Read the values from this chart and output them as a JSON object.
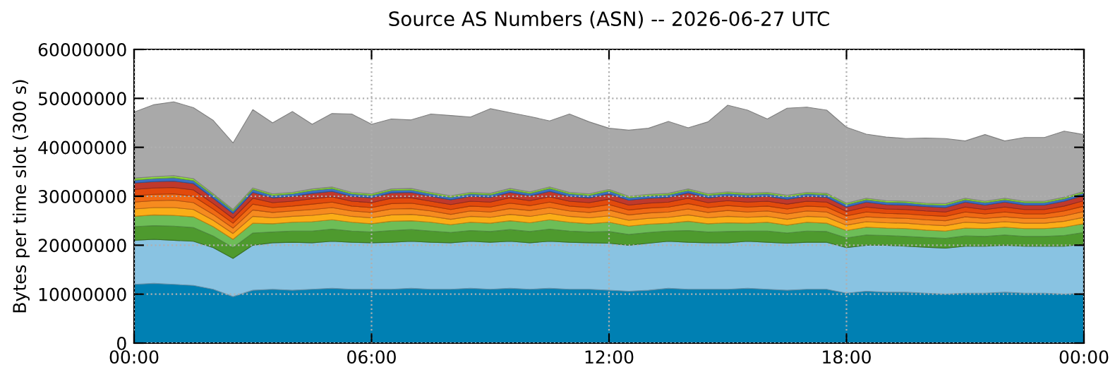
{
  "chart_data": {
    "type": "area",
    "stacked": true,
    "title": "Source AS Numbers (ASN) -- 2026-06-27 UTC",
    "ylabel": "Bytes per time slot (300 s)",
    "x": [
      0,
      0.5,
      1,
      1.5,
      2,
      2.5,
      3,
      3.5,
      4,
      4.5,
      5,
      5.5,
      6,
      6.5,
      7,
      7.5,
      8,
      8.5,
      9,
      9.5,
      10,
      10.5,
      11,
      11.5,
      12,
      12.5,
      13,
      13.5,
      14,
      14.5,
      15,
      15.5,
      16,
      16.5,
      17,
      17.5,
      18,
      18.5,
      19,
      19.5,
      20,
      20.5,
      21,
      21.5,
      22,
      22.5,
      23,
      23.5,
      24
    ],
    "xlim": [
      0,
      24
    ],
    "xticks": [
      {
        "value": 0,
        "label": "00:00"
      },
      {
        "value": 6,
        "label": "06:00"
      },
      {
        "value": 12,
        "label": "12:00"
      },
      {
        "value": 18,
        "label": "18:00"
      },
      {
        "value": 24,
        "label": "00:00"
      }
    ],
    "ylim": [
      0,
      60000000
    ],
    "yticks": [
      0,
      10000000,
      20000000,
      30000000,
      40000000,
      50000000,
      60000000
    ],
    "grid": true,
    "series": [
      {
        "color": "#0080b3",
        "values": [
          12000000,
          12200000,
          12000000,
          11800000,
          11000000,
          9500000,
          10800000,
          11000000,
          10800000,
          11000000,
          11200000,
          11000000,
          11000000,
          11000000,
          11200000,
          11000000,
          11000000,
          11200000,
          11000000,
          11200000,
          11000000,
          11200000,
          11000000,
          11000000,
          10800000,
          10600000,
          10800000,
          11200000,
          11000000,
          11000000,
          11000000,
          11200000,
          11000000,
          10800000,
          11000000,
          11000000,
          10200000,
          10600000,
          10400000,
          10400000,
          10200000,
          10000000,
          10200000,
          10200000,
          10400000,
          10200000,
          10200000,
          10000000,
          10200000
        ]
      },
      {
        "color": "#89c3e2",
        "values": [
          9000000,
          9000000,
          9000000,
          9000000,
          8500000,
          7800000,
          9200000,
          9500000,
          9800000,
          9500000,
          9600000,
          9600000,
          9500000,
          9600000,
          9600000,
          9600000,
          9500000,
          9600000,
          9600000,
          9600000,
          9500000,
          9600000,
          9600000,
          9500000,
          9600000,
          9400000,
          9600000,
          9600000,
          9600000,
          9500000,
          9500000,
          9600000,
          9600000,
          9600000,
          9600000,
          9600000,
          9300000,
          9400000,
          9600000,
          9400000,
          9400000,
          9400000,
          9600000,
          9600000,
          9600000,
          9600000,
          9600000,
          9800000,
          10000000
        ]
      },
      {
        "color": "#4e9a2e",
        "values": [
          2800000,
          2800000,
          2900000,
          2800000,
          2400000,
          2200000,
          2500000,
          2200000,
          2300000,
          2400000,
          2500000,
          2300000,
          2200000,
          2400000,
          2400000,
          2300000,
          2100000,
          2200000,
          2200000,
          2400000,
          2300000,
          2500000,
          2300000,
          2200000,
          2400000,
          2200000,
          2200000,
          2100000,
          2400000,
          2200000,
          2300000,
          2100000,
          2300000,
          2100000,
          2300000,
          2200000,
          2000000,
          2100000,
          2000000,
          2000000,
          2000000,
          2000000,
          2100000,
          2000000,
          2100000,
          2000000,
          2000000,
          2200000,
          2400000
        ]
      },
      {
        "color": "#6dbd57",
        "values": [
          2100000,
          2200000,
          2200000,
          2200000,
          1900000,
          1700000,
          2000000,
          1700000,
          1800000,
          1900000,
          1900000,
          1800000,
          1700000,
          1900000,
          1800000,
          1800000,
          1600000,
          1700000,
          1700000,
          1800000,
          1800000,
          1900000,
          1800000,
          1700000,
          1900000,
          1700000,
          1700000,
          1600000,
          1900000,
          1700000,
          1800000,
          1600000,
          1800000,
          1600000,
          1800000,
          1700000,
          1500000,
          1600000,
          1500000,
          1600000,
          1500000,
          1500000,
          1600000,
          1600000,
          1600000,
          1600000,
          1600000,
          1700000,
          1800000
        ]
      },
      {
        "color": "#fbad17",
        "values": [
          1500000,
          1500000,
          1600000,
          1500000,
          1300000,
          1200000,
          1400000,
          1200000,
          1200000,
          1300000,
          1300000,
          1200000,
          1200000,
          1300000,
          1300000,
          1200000,
          1100000,
          1200000,
          1200000,
          1300000,
          1300000,
          1300000,
          1200000,
          1200000,
          1300000,
          1200000,
          1200000,
          1200000,
          1300000,
          1200000,
          1300000,
          1200000,
          1200000,
          1200000,
          1200000,
          1200000,
          1100000,
          1100000,
          1100000,
          1100000,
          1100000,
          1100000,
          1200000,
          1100000,
          1100000,
          1100000,
          1100000,
          1200000,
          1300000
        ]
      },
      {
        "color": "#f68b1f",
        "values": [
          1400000,
          1400000,
          1500000,
          1400000,
          1200000,
          1100000,
          1300000,
          1100000,
          1100000,
          1200000,
          1200000,
          1100000,
          1100000,
          1200000,
          1200000,
          1100000,
          1000000,
          1100000,
          1100000,
          1200000,
          1200000,
          1200000,
          1100000,
          1100000,
          1200000,
          1100000,
          1100000,
          1100000,
          1200000,
          1100000,
          1200000,
          1100000,
          1100000,
          1100000,
          1100000,
          1100000,
          1000000,
          1000000,
          1000000,
          1000000,
          1000000,
          1000000,
          1100000,
          1000000,
          1000000,
          1000000,
          1000000,
          1100000,
          1200000
        ]
      },
      {
        "color": "#f06a14",
        "values": [
          1300000,
          1300000,
          1300000,
          1300000,
          1100000,
          1000000,
          1200000,
          1000000,
          1000000,
          1100000,
          1100000,
          1000000,
          1000000,
          1100000,
          1100000,
          1000000,
          1000000,
          1000000,
          1000000,
          1100000,
          1000000,
          1100000,
          1000000,
          1000000,
          1100000,
          1000000,
          1000000,
          1000000,
          1100000,
          1000000,
          1000000,
          1000000,
          1000000,
          1000000,
          1000000,
          1000000,
          900000,
          1000000,
          900000,
          900000,
          900000,
          900000,
          1000000,
          900000,
          1000000,
          900000,
          900000,
          1000000,
          1100000
        ]
      },
      {
        "color": "#e24a0c",
        "values": [
          1300000,
          1300000,
          1300000,
          1300000,
          1100000,
          1000000,
          1200000,
          1000000,
          1000000,
          1100000,
          1100000,
          1000000,
          1000000,
          1100000,
          1100000,
          1000000,
          1000000,
          1000000,
          1000000,
          1100000,
          1000000,
          1100000,
          1000000,
          1000000,
          1100000,
          1000000,
          1000000,
          1000000,
          1100000,
          1000000,
          1000000,
          1000000,
          1000000,
          1000000,
          1000000,
          1000000,
          900000,
          1000000,
          900000,
          900000,
          900000,
          900000,
          1000000,
          900000,
          1000000,
          900000,
          900000,
          1000000,
          1100000
        ]
      },
      {
        "color": "#c0392b",
        "values": [
          1300000,
          1300000,
          1300000,
          1300000,
          1100000,
          1000000,
          1200000,
          1000000,
          1000000,
          1100000,
          1100000,
          1000000,
          1000000,
          1100000,
          1100000,
          1000000,
          1000000,
          1000000,
          1000000,
          1100000,
          1000000,
          1100000,
          1000000,
          1000000,
          1100000,
          1000000,
          1000000,
          1000000,
          1100000,
          1000000,
          1000000,
          1000000,
          1000000,
          1000000,
          1000000,
          1000000,
          900000,
          1000000,
          900000,
          900000,
          900000,
          900000,
          1000000,
          900000,
          1000000,
          900000,
          900000,
          1000000,
          1100000
        ]
      },
      {
        "color": "#3b6fc4",
        "values": [
          600000,
          600000,
          700000,
          600000,
          600000,
          500000,
          600000,
          500000,
          500000,
          600000,
          600000,
          500000,
          500000,
          500000,
          500000,
          500000,
          500000,
          500000,
          500000,
          500000,
          500000,
          600000,
          500000,
          500000,
          600000,
          500000,
          500000,
          500000,
          500000,
          500000,
          500000,
          500000,
          500000,
          500000,
          500000,
          500000,
          500000,
          500000,
          500000,
          500000,
          400000,
          500000,
          500000,
          500000,
          500000,
          500000,
          500000,
          500000,
          500000
        ]
      },
      {
        "color": "#8fe03a",
        "values": [
          400000,
          400000,
          400000,
          400000,
          300000,
          300000,
          300000,
          300000,
          300000,
          300000,
          300000,
          300000,
          300000,
          300000,
          300000,
          300000,
          300000,
          300000,
          300000,
          300000,
          300000,
          300000,
          300000,
          300000,
          300000,
          300000,
          300000,
          300000,
          300000,
          300000,
          300000,
          300000,
          300000,
          300000,
          300000,
          300000,
          300000,
          300000,
          300000,
          300000,
          300000,
          300000,
          300000,
          300000,
          300000,
          300000,
          300000,
          300000,
          300000
        ]
      },
      {
        "color": "#a9a9a9",
        "values": [
          13500000,
          14700000,
          15100000,
          14500000,
          15000000,
          13600000,
          16000000,
          14500000,
          16500000,
          13200000,
          15000000,
          16000000,
          14200000,
          14300000,
          14000000,
          16000000,
          16400000,
          15400000,
          17300000,
          15500000,
          15400000,
          13500000,
          16000000,
          14700000,
          12500000,
          13500000,
          13500000,
          14700000,
          12500000,
          14700000,
          17700000,
          17000000,
          15000000,
          17800000,
          17400000,
          17000000,
          15500000,
          13100000,
          13000000,
          12800000,
          13300000,
          13300000,
          11700000,
          13600000,
          11700000,
          13000000,
          13000000,
          13500000,
          11600000
        ]
      }
    ]
  }
}
